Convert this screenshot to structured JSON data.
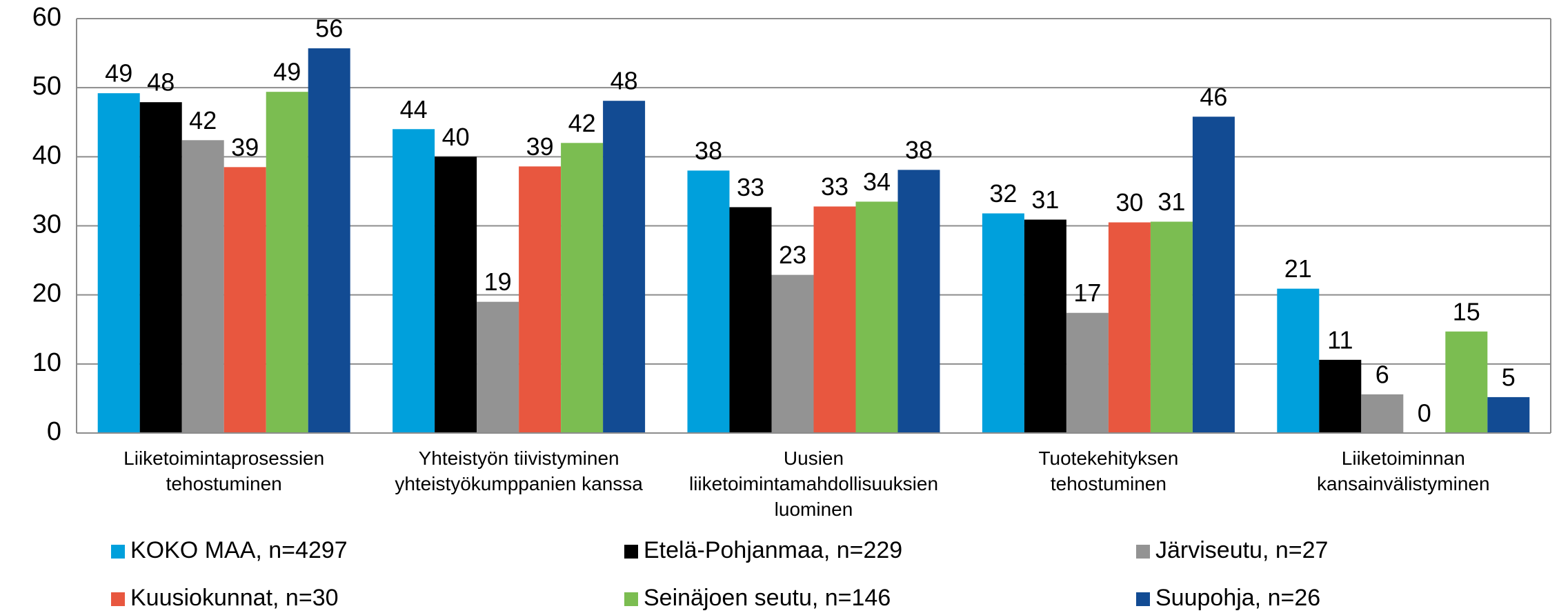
{
  "chart_data": {
    "type": "bar",
    "categories": [
      [
        "Liiketoimintaprosessien",
        "tehostuminen"
      ],
      [
        "Yhteistyön tiivistyminen",
        "yhteistyökumppanien kanssa"
      ],
      [
        "Uusien",
        "liiketoimintamahdollisuuksien",
        "luominen"
      ],
      [
        "Tuotekehityksen",
        "tehostuminen"
      ],
      [
        "Liiketoiminnan",
        "kansainvälistyminen"
      ]
    ],
    "series": [
      {
        "name": "KOKO MAA, n=4297",
        "color": "#00a0dc",
        "values": [
          49.2,
          44.0,
          38.0,
          31.8,
          20.9
        ],
        "value_labels": [
          "49",
          "44",
          "38",
          "32",
          "21"
        ]
      },
      {
        "name": "Etelä-Pohjanmaa, n=229",
        "color": "#000000",
        "values": [
          47.9,
          40.0,
          32.7,
          30.9,
          10.6
        ],
        "value_labels": [
          "48",
          "40",
          "33",
          "31",
          "11"
        ]
      },
      {
        "name": "Järviseutu, n=27",
        "color": "#939393",
        "values": [
          42.4,
          19.0,
          22.9,
          17.4,
          5.6
        ],
        "value_labels": [
          "42",
          "19",
          "23",
          "17",
          "6"
        ]
      },
      {
        "name": "Kuusiokunnat, n=30",
        "color": "#e8573f",
        "values": [
          38.5,
          38.6,
          32.8,
          30.5,
          0
        ],
        "value_labels": [
          "39",
          "39",
          "33",
          "30",
          "0"
        ]
      },
      {
        "name": "Seinäjoen seutu, n=146",
        "color": "#7bbd51",
        "values": [
          49.4,
          42.0,
          33.5,
          30.6,
          14.7
        ],
        "value_labels": [
          "49",
          "42",
          "34",
          "31",
          "15"
        ]
      },
      {
        "name": "Suupohja, n=26",
        "color": "#124b93",
        "values": [
          55.7,
          48.1,
          38.1,
          45.8,
          5.2
        ],
        "value_labels": [
          "56",
          "48",
          "38",
          "46",
          "5"
        ]
      }
    ],
    "ylim": [
      0,
      60
    ],
    "yticks": [
      0,
      10,
      20,
      30,
      40,
      50,
      60
    ],
    "grid": true,
    "legend": "bottom"
  }
}
